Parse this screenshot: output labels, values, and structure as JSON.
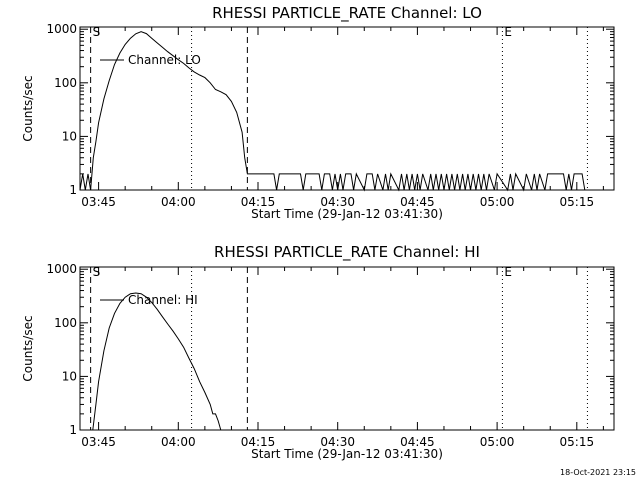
{
  "chart_data": [
    {
      "type": "line",
      "title": "RHESSI PARTICLE_RATE Channel: LO",
      "xlabel": "Start Time (29-Jan-12 03:41:30)",
      "ylabel": "Counts/sec",
      "x_tick_labels": [
        "03:45",
        "04:00",
        "04:15",
        "04:30",
        "04:45",
        "05:00",
        "05:15"
      ],
      "x_tick_minutes": [
        225,
        240,
        255,
        270,
        285,
        300,
        315
      ],
      "xlim": [
        221.5,
        322
      ],
      "y_scale": "log",
      "ylim": [
        1,
        1100
      ],
      "y_tick_labels": [
        "1",
        "10",
        "100",
        "1000"
      ],
      "legend": "Channel: LO",
      "legend_position": "top-left",
      "markers": [
        {
          "label": "S",
          "minute": 223.5,
          "style": "dashed"
        },
        {
          "label": "",
          "minute": 242.5,
          "style": "dotted"
        },
        {
          "label": "",
          "minute": 253.0,
          "style": "dashed"
        },
        {
          "label": "E",
          "minute": 301.0,
          "style": "dotted"
        },
        {
          "label": "",
          "minute": 317.0,
          "style": "dotted"
        }
      ],
      "series": [
        {
          "name": "Channel: LO",
          "points": [
            [
              221.5,
              1
            ],
            [
              222.0,
              2
            ],
            [
              222.5,
              1
            ],
            [
              223.0,
              2
            ],
            [
              223.5,
              1
            ],
            [
              224.0,
              4
            ],
            [
              224.5,
              8
            ],
            [
              225.0,
              18
            ],
            [
              226.0,
              50
            ],
            [
              227.0,
              110
            ],
            [
              228.0,
              220
            ],
            [
              229.0,
              360
            ],
            [
              230.0,
              520
            ],
            [
              231.0,
              680
            ],
            [
              232.0,
              820
            ],
            [
              233.0,
              900
            ],
            [
              234.0,
              830
            ],
            [
              235.0,
              680
            ],
            [
              236.0,
              560
            ],
            [
              237.0,
              460
            ],
            [
              238.0,
              380
            ],
            [
              239.0,
              320
            ],
            [
              240.0,
              270
            ],
            [
              241.0,
              230
            ],
            [
              242.0,
              190
            ],
            [
              243.0,
              160
            ],
            [
              244.0,
              140
            ],
            [
              245.0,
              125
            ],
            [
              246.0,
              100
            ],
            [
              247.0,
              75
            ],
            [
              248.0,
              68
            ],
            [
              249.0,
              60
            ],
            [
              250.0,
              45
            ],
            [
              251.0,
              28
            ],
            [
              252.0,
              12
            ],
            [
              252.5,
              4
            ],
            [
              253.0,
              2
            ],
            [
              253.5,
              2
            ],
            [
              258.0,
              2
            ],
            [
              258.5,
              1
            ],
            [
              259.0,
              2
            ],
            [
              263.0,
              2
            ],
            [
              263.5,
              1
            ],
            [
              264.0,
              2
            ],
            [
              266.5,
              2
            ],
            [
              267.0,
              1
            ],
            [
              267.5,
              2
            ],
            [
              268.5,
              2
            ],
            [
              269.0,
              1
            ],
            [
              269.5,
              2
            ],
            [
              270.0,
              1
            ],
            [
              270.5,
              2
            ],
            [
              271.0,
              1
            ],
            [
              271.5,
              2
            ],
            [
              272.5,
              2
            ],
            [
              273.0,
              1
            ],
            [
              273.5,
              2
            ],
            [
              275.0,
              1
            ],
            [
              275.5,
              2
            ],
            [
              276.5,
              2
            ],
            [
              277.0,
              1
            ],
            [
              277.5,
              2
            ],
            [
              278.5,
              1
            ],
            [
              279.0,
              2
            ],
            [
              279.5,
              1
            ],
            [
              280.0,
              2
            ],
            [
              281.5,
              1
            ],
            [
              282.0,
              2
            ],
            [
              282.5,
              1
            ],
            [
              283.0,
              2
            ],
            [
              283.5,
              1
            ],
            [
              284.0,
              2
            ],
            [
              284.5,
              1
            ],
            [
              285.0,
              2
            ],
            [
              285.5,
              1
            ],
            [
              286.0,
              2
            ],
            [
              287.0,
              1
            ],
            [
              287.5,
              2
            ],
            [
              288.0,
              1
            ],
            [
              288.5,
              2
            ],
            [
              289.0,
              1
            ],
            [
              289.5,
              2
            ],
            [
              290.0,
              1
            ],
            [
              290.5,
              2
            ],
            [
              291.0,
              1
            ],
            [
              291.5,
              2
            ],
            [
              292.0,
              1
            ],
            [
              292.5,
              2
            ],
            [
              293.0,
              1
            ],
            [
              293.5,
              2
            ],
            [
              294.0,
              1
            ],
            [
              294.5,
              2
            ],
            [
              295.0,
              1
            ],
            [
              295.5,
              2
            ],
            [
              296.0,
              1
            ],
            [
              296.5,
              2
            ],
            [
              297.0,
              1
            ],
            [
              297.5,
              2
            ],
            [
              298.0,
              1
            ],
            [
              298.5,
              2
            ],
            [
              299.5,
              1
            ],
            [
              300.0,
              2
            ],
            [
              302.0,
              1
            ],
            [
              302.5,
              2
            ],
            [
              303.0,
              1
            ],
            [
              303.5,
              2
            ],
            [
              305.0,
              1
            ],
            [
              305.5,
              2
            ],
            [
              306.5,
              1
            ],
            [
              307.0,
              2
            ],
            [
              307.5,
              1
            ],
            [
              308.0,
              2
            ],
            [
              309.0,
              1
            ],
            [
              309.5,
              2
            ],
            [
              312.5,
              2
            ],
            [
              313.0,
              1
            ],
            [
              313.5,
              2
            ],
            [
              314.0,
              1
            ],
            [
              314.5,
              2
            ],
            [
              316.0,
              2
            ],
            [
              316.5,
              1
            ],
            [
              322.0,
              1
            ]
          ]
        }
      ]
    },
    {
      "type": "line",
      "title": "RHESSI PARTICLE_RATE Channel: HI",
      "xlabel": "Start Time (29-Jan-12 03:41:30)",
      "ylabel": "Counts/sec",
      "x_tick_labels": [
        "03:45",
        "04:00",
        "04:15",
        "04:30",
        "04:45",
        "05:00",
        "05:15"
      ],
      "x_tick_minutes": [
        225,
        240,
        255,
        270,
        285,
        300,
        315
      ],
      "xlim": [
        221.5,
        322
      ],
      "y_scale": "log",
      "ylim": [
        1,
        1100
      ],
      "y_tick_labels": [
        "1",
        "10",
        "100",
        "1000"
      ],
      "legend": "Channel: HI",
      "legend_position": "top-left",
      "markers": [
        {
          "label": "S",
          "minute": 223.5,
          "style": "dashed"
        },
        {
          "label": "",
          "minute": 242.5,
          "style": "dotted"
        },
        {
          "label": "",
          "minute": 253.0,
          "style": "dashed"
        },
        {
          "label": "E",
          "minute": 301.0,
          "style": "dotted"
        },
        {
          "label": "",
          "minute": 317.0,
          "style": "dotted"
        }
      ],
      "series": [
        {
          "name": "Channel: HI",
          "points": [
            [
              223.9,
              1
            ],
            [
              224.5,
              3
            ],
            [
              225.0,
              8
            ],
            [
              226.0,
              30
            ],
            [
              227.0,
              80
            ],
            [
              228.0,
              150
            ],
            [
              229.0,
              230
            ],
            [
              230.0,
              300
            ],
            [
              231.0,
              350
            ],
            [
              232.0,
              360
            ],
            [
              233.0,
              350
            ],
            [
              234.0,
              300
            ],
            [
              235.0,
              240
            ],
            [
              236.0,
              180
            ],
            [
              237.0,
              130
            ],
            [
              238.0,
              95
            ],
            [
              239.0,
              70
            ],
            [
              240.0,
              50
            ],
            [
              241.0,
              35
            ],
            [
              242.0,
              22
            ],
            [
              243.0,
              14
            ],
            [
              244.0,
              8
            ],
            [
              245.0,
              5
            ],
            [
              246.0,
              3
            ],
            [
              246.5,
              2
            ],
            [
              247.0,
              2
            ],
            [
              247.5,
              1.5
            ],
            [
              248.0,
              1
            ]
          ]
        }
      ]
    }
  ],
  "footer_timestamp": "18-Oct-2021 23:15"
}
